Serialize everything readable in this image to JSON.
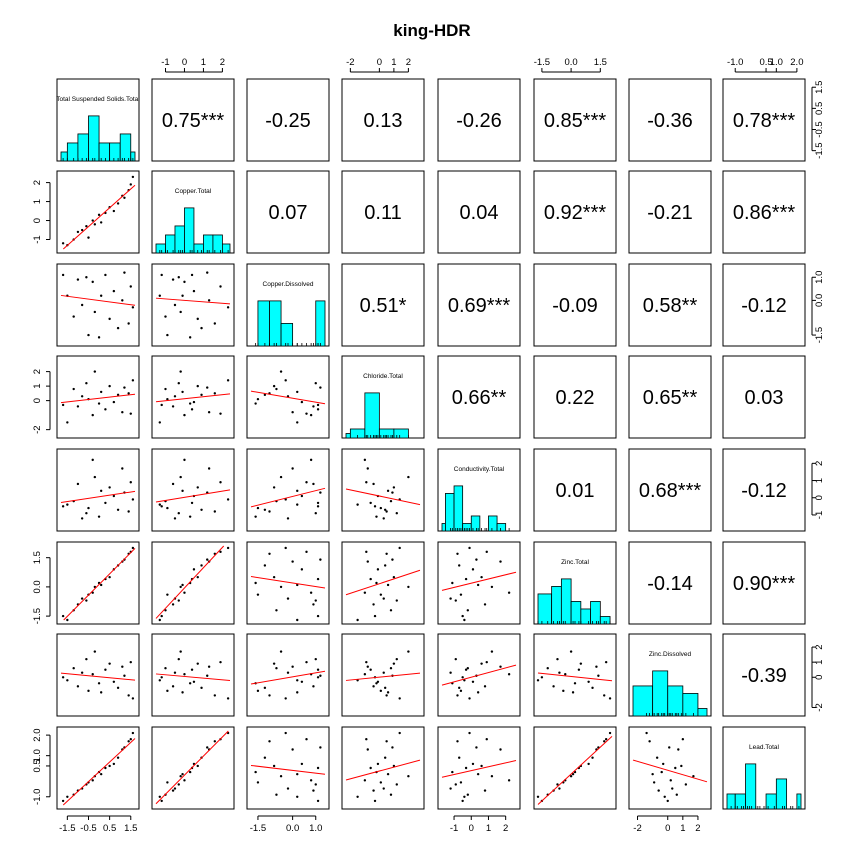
{
  "title": "king-HDR",
  "chart_data": {
    "type": "scatter-matrix",
    "title": "king-HDR",
    "variables": [
      "Total Suspended Solids.Total",
      "Copper.Total",
      "Copper.Dissolved",
      "Chloride.Total",
      "Conductivity.Total",
      "Zinc.Total",
      "Zinc.Dissolved",
      "Lead.Total"
    ],
    "ranges": [
      [
        -1.8,
        1.7
      ],
      [
        -1.5,
        2.4
      ],
      [
        -1.8,
        1.4
      ],
      [
        -2.3,
        2.8
      ],
      [
        -1.7,
        2.6
      ],
      [
        -1.7,
        2.1
      ],
      [
        -2.3,
        2.6
      ],
      [
        -1.4,
        2.2
      ]
    ],
    "ticks": [
      [
        "-1.5",
        "-0.5",
        "0.5",
        "1.5"
      ],
      [
        "-1",
        "0",
        "1",
        "2"
      ],
      [
        "-1.5",
        "0.0",
        "1.0"
      ],
      [
        "-2",
        "0",
        "1",
        "2"
      ],
      [
        "-1",
        "0",
        "1",
        "2"
      ],
      [
        "-1.5",
        "0.0",
        "1.5"
      ],
      [
        "-2",
        "0",
        "1",
        "2"
      ],
      [
        "-1.0",
        "0.5",
        "1.0",
        "2.0"
      ]
    ],
    "correlations": [
      {
        "i": 0,
        "j": 1,
        "r": "0.75",
        "sig": "***"
      },
      {
        "i": 0,
        "j": 2,
        "r": "-0.25",
        "sig": ""
      },
      {
        "i": 0,
        "j": 3,
        "r": "0.13",
        "sig": ""
      },
      {
        "i": 0,
        "j": 4,
        "r": "-0.26",
        "sig": ""
      },
      {
        "i": 0,
        "j": 5,
        "r": "0.85",
        "sig": "***"
      },
      {
        "i": 0,
        "j": 6,
        "r": "-0.36",
        "sig": ""
      },
      {
        "i": 0,
        "j": 7,
        "r": "0.78",
        "sig": "***"
      },
      {
        "i": 1,
        "j": 2,
        "r": "0.07",
        "sig": ""
      },
      {
        "i": 1,
        "j": 3,
        "r": "0.11",
        "sig": ""
      },
      {
        "i": 1,
        "j": 4,
        "r": "0.04",
        "sig": ""
      },
      {
        "i": 1,
        "j": 5,
        "r": "0.92",
        "sig": "***"
      },
      {
        "i": 1,
        "j": 6,
        "r": "-0.21",
        "sig": ""
      },
      {
        "i": 1,
        "j": 7,
        "r": "0.86",
        "sig": "***"
      },
      {
        "i": 2,
        "j": 3,
        "r": "0.51",
        "sig": "*"
      },
      {
        "i": 2,
        "j": 4,
        "r": "0.69",
        "sig": "***"
      },
      {
        "i": 2,
        "j": 5,
        "r": "-0.09",
        "sig": ""
      },
      {
        "i": 2,
        "j": 6,
        "r": "0.58",
        "sig": "**"
      },
      {
        "i": 2,
        "j": 7,
        "r": "-0.12",
        "sig": ""
      },
      {
        "i": 3,
        "j": 4,
        "r": "0.66",
        "sig": "**"
      },
      {
        "i": 3,
        "j": 5,
        "r": "0.22",
        "sig": ""
      },
      {
        "i": 3,
        "j": 6,
        "r": "0.65",
        "sig": "**"
      },
      {
        "i": 3,
        "j": 7,
        "r": "0.03",
        "sig": ""
      },
      {
        "i": 4,
        "j": 5,
        "r": "0.01",
        "sig": ""
      },
      {
        "i": 4,
        "j": 6,
        "r": "0.68",
        "sig": "***"
      },
      {
        "i": 4,
        "j": 7,
        "r": "-0.12",
        "sig": ""
      },
      {
        "i": 5,
        "j": 6,
        "r": "-0.14",
        "sig": ""
      },
      {
        "i": 5,
        "j": 7,
        "r": "0.90",
        "sig": "***"
      },
      {
        "i": 6,
        "j": 7,
        "r": "-0.39",
        "sig": ""
      }
    ],
    "histograms": [
      {
        "bins": [
          -1.8,
          -1.5,
          -1.0,
          -0.5,
          0.0,
          0.5,
          1.0,
          1.5,
          1.7
        ],
        "counts": [
          1,
          2,
          3,
          5,
          2,
          2,
          3,
          1
        ]
      },
      {
        "bins": [
          -1.5,
          -1.0,
          -0.5,
          0.0,
          0.5,
          1.0,
          1.5,
          2.0,
          2.4
        ],
        "counts": [
          1,
          2,
          3,
          5,
          1,
          2,
          2,
          1
        ]
      },
      {
        "bins": [
          -1.8,
          -1.5,
          -1.0,
          -0.5,
          0.0,
          0.5,
          1.0,
          1.4
        ],
        "counts": [
          0,
          2,
          2,
          1,
          0,
          0,
          2
        ]
      },
      {
        "bins": [
          -2.3,
          -2,
          -1,
          0,
          1,
          2,
          2.8
        ],
        "counts": [
          1,
          2,
          10,
          2,
          2,
          0
        ]
      },
      {
        "bins": [
          -1.7,
          -1.5,
          -1.0,
          -0.5,
          0.0,
          0.5,
          1.0,
          1.5,
          2.0,
          2.6
        ],
        "counts": [
          1,
          5,
          6,
          1,
          2,
          0,
          2,
          1,
          0
        ]
      },
      {
        "bins": [
          -1.7,
          -1.0,
          -0.5,
          0.0,
          0.5,
          1.0,
          1.5,
          2.0,
          2.1
        ],
        "counts": [
          4,
          5,
          6,
          3,
          2,
          3,
          1,
          0
        ]
      },
      {
        "bins": [
          -2.3,
          -1,
          0,
          1,
          2,
          2.6
        ],
        "counts": [
          4,
          6,
          4,
          3,
          1
        ]
      },
      {
        "bins": [
          -1.4,
          -1.0,
          -0.5,
          0.0,
          0.5,
          1.0,
          1.5,
          2.0,
          2.2
        ],
        "counts": [
          1,
          1,
          3,
          0,
          1,
          2,
          0,
          1
        ]
      }
    ],
    "observations": [
      [
        -1.7,
        -1.2,
        1.1,
        -0.3,
        -0.5,
        -1.5,
        0.0,
        -1.2
      ],
      [
        -1.5,
        -1.3,
        0.2,
        -1.5,
        -0.4,
        -1.7,
        -0.2,
        -1.0
      ],
      [
        -1.2,
        -1.0,
        -0.7,
        0.8,
        -0.2,
        -1.2,
        0.6,
        -0.9
      ],
      [
        -1.0,
        -0.6,
        0.9,
        -0.4,
        0.8,
        -0.9,
        -0.6,
        -0.7
      ],
      [
        -0.8,
        -0.5,
        -0.2,
        0.3,
        -1.2,
        -0.6,
        0.3,
        -0.6
      ],
      [
        -0.6,
        -0.3,
        1.0,
        1.2,
        -0.9,
        -0.7,
        1.2,
        -0.4
      ],
      [
        -0.5,
        -0.9,
        -1.5,
        0.1,
        -0.6,
        -0.4,
        -0.9,
        -0.3
      ],
      [
        -0.3,
        0.0,
        0.8,
        -1.0,
        2.2,
        -0.3,
        0.2,
        -0.2
      ],
      [
        -0.2,
        -0.2,
        -0.5,
        2.0,
        1.2,
        0.0,
        1.7,
        0.0
      ],
      [
        0.0,
        0.3,
        -1.6,
        -0.2,
        -1.1,
        0.2,
        -0.4,
        0.2
      ],
      [
        0.1,
        -0.1,
        0.2,
        0.6,
        0.4,
        0.1,
        -1.0,
        0.1
      ],
      [
        0.3,
        0.4,
        1.1,
        -0.6,
        -0.3,
        0.4,
        0.5,
        0.4
      ],
      [
        0.5,
        0.7,
        -0.8,
        1.0,
        0.6,
        0.5,
        0.9,
        0.5
      ],
      [
        0.7,
        0.5,
        0.4,
        -0.1,
        0.1,
        0.9,
        -0.3,
        0.6
      ],
      [
        0.9,
        0.9,
        -1.2,
        0.4,
        -0.7,
        1.1,
        -0.7,
        0.9
      ],
      [
        1.1,
        1.3,
        0.0,
        -0.8,
        1.7,
        1.3,
        0.7,
        1.3
      ],
      [
        1.2,
        1.2,
        1.2,
        0.9,
        0.3,
        1.4,
        0.1,
        1.4
      ],
      [
        1.4,
        1.6,
        -1.0,
        0.5,
        -0.8,
        1.7,
        -1.2,
        1.7
      ],
      [
        1.5,
        1.9,
        0.6,
        -0.9,
        0.9,
        1.8,
        1.0,
        1.8
      ],
      [
        1.6,
        2.3,
        -0.3,
        1.4,
        -0.1,
        2.0,
        -1.4,
        2.1
      ]
    ]
  }
}
